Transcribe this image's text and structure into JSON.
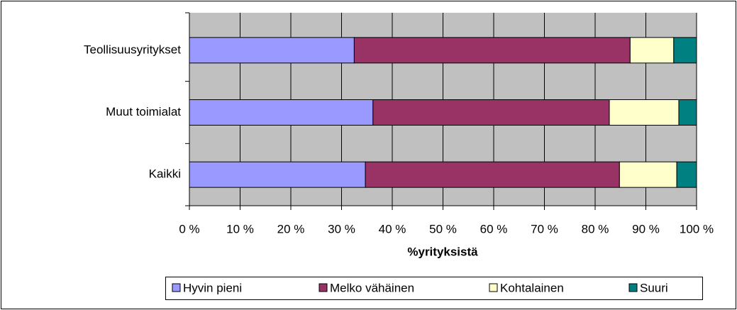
{
  "chart_data": {
    "type": "stacked_barh",
    "categories": [
      "Teollisuusyritykset",
      "Muut toimialat",
      "Kaikki"
    ],
    "series": [
      {
        "name": "Hyvin pieni",
        "color": "#9999ff",
        "values": [
          32.5,
          36.2,
          34.7
        ]
      },
      {
        "name": "Melko vähäinen",
        "color": "#993366",
        "values": [
          54.4,
          46.6,
          50.1
        ]
      },
      {
        "name": "Kohtalainen",
        "color": "#ffffcc",
        "values": [
          8.6,
          13.7,
          11.3
        ]
      },
      {
        "name": "Suuri",
        "color": "#008080",
        "values": [
          4.5,
          3.5,
          3.9
        ]
      }
    ],
    "xlabel": "%yrityksistä",
    "xlim": [
      0,
      100
    ],
    "xticks": [
      {
        "value": 0,
        "label": "0 %"
      },
      {
        "value": 10,
        "label": "10 %"
      },
      {
        "value": 20,
        "label": "20 %"
      },
      {
        "value": 30,
        "label": "30 %"
      },
      {
        "value": 40,
        "label": "40 %"
      },
      {
        "value": 50,
        "label": "50 %"
      },
      {
        "value": 60,
        "label": "60 %"
      },
      {
        "value": 70,
        "label": "70 %"
      },
      {
        "value": 80,
        "label": "80 %"
      },
      {
        "value": 90,
        "label": "90 %"
      },
      {
        "value": 100,
        "label": "100 %"
      }
    ],
    "grid": true,
    "legend": "bottom"
  }
}
